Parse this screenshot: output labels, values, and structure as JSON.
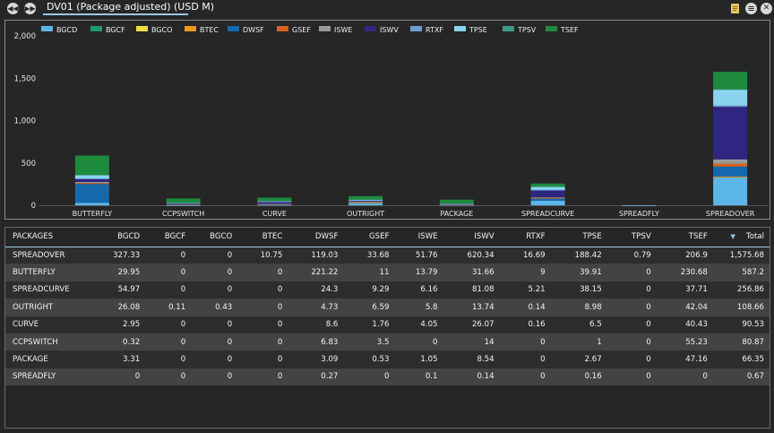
{
  "header": {
    "title": "DV01 (Package adjusted) (USD M)",
    "prev_icon": "rewind-icon",
    "next_icon": "fast-forward-icon",
    "icons": [
      "note-icon",
      "menu-icon",
      "close-icon"
    ]
  },
  "legend": [
    {
      "name": "BGCD",
      "color": "#5db6e8"
    },
    {
      "name": "BGCF",
      "color": "#1a9a78"
    },
    {
      "name": "BGCO",
      "color": "#f1de43"
    },
    {
      "name": "BTEC",
      "color": "#e89a1f"
    },
    {
      "name": "DWSF",
      "color": "#1469ad"
    },
    {
      "name": "GSEF",
      "color": "#d8631c"
    },
    {
      "name": "ISWE",
      "color": "#9a9a9a"
    },
    {
      "name": "ISWV",
      "color": "#2f2681"
    },
    {
      "name": "RTXF",
      "color": "#6f9dd0"
    },
    {
      "name": "TPSE",
      "color": "#8ad4f0"
    },
    {
      "name": "TPSV",
      "color": "#3b9c84"
    },
    {
      "name": "TSEF",
      "color": "#1d8a3e"
    }
  ],
  "chart_data": {
    "type": "bar",
    "stacked": true,
    "categories": [
      "BUTTERFLY",
      "CCPSWITCH",
      "CURVE",
      "OUTRIGHT",
      "PACKAGE",
      "SPREADCURVE",
      "SPREADFLY",
      "SPREADOVER"
    ],
    "ylim": [
      0,
      2000
    ],
    "yticks": [
      "0",
      "500",
      "1,000",
      "1,500",
      "2,000"
    ],
    "ytick_values": [
      0,
      500,
      1000,
      1500,
      2000
    ],
    "legend_position": "top-left",
    "series": [
      {
        "name": "BGCD",
        "values": [
          29.95,
          0.32,
          2.95,
          26.08,
          3.31,
          54.97,
          0,
          327.33
        ]
      },
      {
        "name": "BGCF",
        "values": [
          0,
          0,
          0,
          0.11,
          0,
          0,
          0,
          0
        ]
      },
      {
        "name": "BGCO",
        "values": [
          0,
          0,
          0,
          0.43,
          0,
          0,
          0,
          0
        ]
      },
      {
        "name": "BTEC",
        "values": [
          0,
          0,
          0,
          0,
          0,
          0,
          0,
          10.75
        ]
      },
      {
        "name": "DWSF",
        "values": [
          221.22,
          6.83,
          8.6,
          4.73,
          3.09,
          24.3,
          0.27,
          119.03
        ]
      },
      {
        "name": "GSEF",
        "values": [
          11,
          3.5,
          1.76,
          6.59,
          0.53,
          9.29,
          0,
          33.68
        ]
      },
      {
        "name": "ISWE",
        "values": [
          13.79,
          0,
          4.05,
          5.8,
          1.05,
          6.16,
          0.1,
          51.76
        ]
      },
      {
        "name": "ISWV",
        "values": [
          31.66,
          14,
          26.07,
          13.74,
          8.54,
          81.08,
          0.14,
          620.34
        ]
      },
      {
        "name": "RTXF",
        "values": [
          9,
          0,
          0.16,
          0.14,
          0,
          5.21,
          0,
          16.69
        ]
      },
      {
        "name": "TPSE",
        "values": [
          39.91,
          1,
          6.5,
          8.98,
          2.67,
          38.15,
          0.16,
          188.42
        ]
      },
      {
        "name": "TPSV",
        "values": [
          0,
          0,
          0,
          0,
          0,
          0,
          0,
          0.79
        ]
      },
      {
        "name": "TSEF",
        "values": [
          230.68,
          55.23,
          40.43,
          42.04,
          47.16,
          37.71,
          0,
          206.9
        ]
      }
    ]
  },
  "table": {
    "columns": [
      "PACKAGES",
      "BGCD",
      "BGCF",
      "BGCO",
      "BTEC",
      "DWSF",
      "GSEF",
      "ISWE",
      "ISWV",
      "RTXF",
      "TPSE",
      "TPSV",
      "TSEF",
      "Total"
    ],
    "sort_icon": "sort-descending-icon",
    "rows": [
      [
        "SPREADOVER",
        "327.33",
        "0",
        "0",
        "10.75",
        "119.03",
        "33.68",
        "51.76",
        "620.34",
        "16.69",
        "188.42",
        "0.79",
        "206.9",
        "1,575.68"
      ],
      [
        "BUTTERFLY",
        "29.95",
        "0",
        "0",
        "0",
        "221.22",
        "11",
        "13.79",
        "31.66",
        "9",
        "39.91",
        "0",
        "230.68",
        "587.2"
      ],
      [
        "SPREADCURVE",
        "54.97",
        "0",
        "0",
        "0",
        "24.3",
        "9.29",
        "6.16",
        "81.08",
        "5.21",
        "38.15",
        "0",
        "37.71",
        "256.86"
      ],
      [
        "OUTRIGHT",
        "26.08",
        "0.11",
        "0.43",
        "0",
        "4.73",
        "6.59",
        "5.8",
        "13.74",
        "0.14",
        "8.98",
        "0",
        "42.04",
        "108.66"
      ],
      [
        "CURVE",
        "2.95",
        "0",
        "0",
        "0",
        "8.6",
        "1.76",
        "4.05",
        "26.07",
        "0.16",
        "6.5",
        "0",
        "40.43",
        "90.53"
      ],
      [
        "CCPSWITCH",
        "0.32",
        "0",
        "0",
        "0",
        "6.83",
        "3.5",
        "0",
        "14",
        "0",
        "1",
        "0",
        "55.23",
        "80.87"
      ],
      [
        "PACKAGE",
        "3.31",
        "0",
        "0",
        "0",
        "3.09",
        "0.53",
        "1.05",
        "8.54",
        "0",
        "2.67",
        "0",
        "47.16",
        "66.35"
      ],
      [
        "SPREADFLY",
        "0",
        "0",
        "0",
        "0",
        "0.27",
        "0",
        "0.1",
        "0.14",
        "0",
        "0.16",
        "0",
        "0",
        "0.67"
      ]
    ]
  }
}
